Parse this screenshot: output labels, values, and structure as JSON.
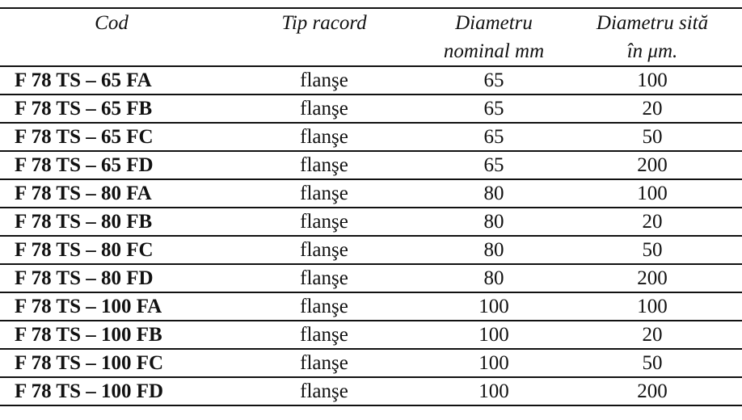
{
  "table": {
    "headers": [
      {
        "line1": "Cod",
        "line2": ""
      },
      {
        "line1": "Tip racord",
        "line2": ""
      },
      {
        "line1": "Diametru",
        "line2": "nominal mm"
      },
      {
        "line1": "Diametru sită",
        "line2": "în μm."
      }
    ],
    "rows": [
      [
        "F 78 TS – 65 FA",
        "flanşe",
        "65",
        "100"
      ],
      [
        "F 78 TS – 65 FB",
        "flanşe",
        "65",
        "20"
      ],
      [
        "F 78 TS – 65 FC",
        "flanşe",
        "65",
        "50"
      ],
      [
        "F 78 TS – 65 FD",
        "flanşe",
        "65",
        "200"
      ],
      [
        "F 78 TS – 80 FA",
        "flanşe",
        "80",
        "100"
      ],
      [
        "F 78 TS – 80 FB",
        "flanşe",
        "80",
        "20"
      ],
      [
        "F 78 TS – 80 FC",
        "flanşe",
        "80",
        "50"
      ],
      [
        "F 78 TS – 80 FD",
        "flanşe",
        "80",
        "200"
      ],
      [
        "F 78 TS – 100 FA",
        "flanşe",
        "100",
        "100"
      ],
      [
        "F 78 TS – 100 FB",
        "flanşe",
        "100",
        "20"
      ],
      [
        "F 78 TS – 100 FC",
        "flanşe",
        "100",
        "50"
      ],
      [
        "F 78 TS – 100 FD",
        "flanşe",
        "100",
        "200"
      ]
    ]
  }
}
